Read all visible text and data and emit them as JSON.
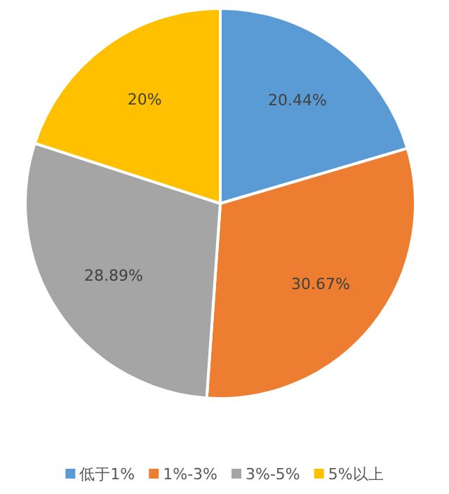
{
  "chart_data": {
    "type": "pie",
    "categories": [
      "低于1%",
      "1%-3%",
      "3%-5%",
      "5%以上"
    ],
    "values": [
      20.44,
      30.67,
      28.89,
      20
    ],
    "colors": [
      "#5b9bd5",
      "#ed7d31",
      "#a5a5a5",
      "#ffc000"
    ],
    "value_labels": [
      "20.44%",
      "30.67%",
      "28.89%",
      "20%"
    ],
    "legend": "bottom"
  }
}
